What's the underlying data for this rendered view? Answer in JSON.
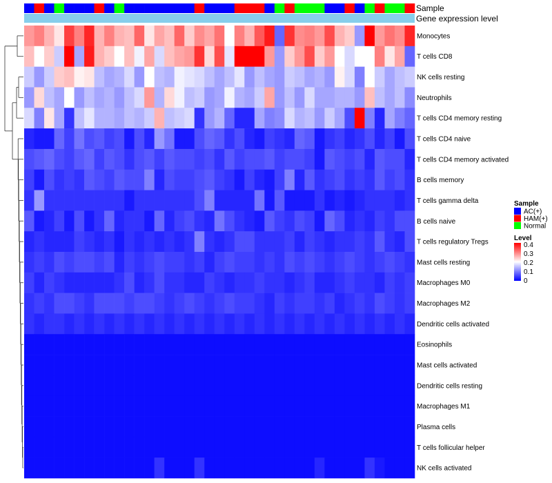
{
  "chart_data": {
    "type": "heatmap",
    "annotations": {
      "sample_label": "Sample",
      "expression_label": "Gene expression level"
    },
    "sample_groups": [
      "AC(+)",
      "HAM(+)",
      "AC(+)",
      "Normal",
      "AC(+)",
      "AC(+)",
      "AC(+)",
      "HAM(+)",
      "AC(+)",
      "Normal",
      "AC(+)",
      "AC(+)",
      "AC(+)",
      "AC(+)",
      "AC(+)",
      "AC(+)",
      "AC(+)",
      "HAM(+)",
      "AC(+)",
      "AC(+)",
      "AC(+)",
      "HAM(+)",
      "HAM(+)",
      "HAM(+)",
      "AC(+)",
      "Normal",
      "HAM(+)",
      "Normal",
      "Normal",
      "Normal",
      "AC(+)",
      "AC(+)",
      "HAM(+)",
      "AC(+)",
      "Normal",
      "HAM(+)",
      "Normal",
      "Normal",
      "HAM(+)"
    ],
    "rows": [
      {
        "label": "Monocytes",
        "values": [
          0.28,
          0.3,
          0.26,
          0.22,
          0.35,
          0.3,
          0.37,
          0.26,
          0.3,
          0.26,
          0.25,
          0.32,
          0.22,
          0.27,
          0.25,
          0.32,
          0.24,
          0.29,
          0.27,
          0.31,
          0.2,
          0.3,
          0.26,
          0.33,
          0.38,
          0.08,
          0.36,
          0.29,
          0.3,
          0.28,
          0.34,
          0.26,
          0.24,
          0.12,
          0.4,
          0.28,
          0.31,
          0.29,
          0.37
        ]
      },
      {
        "label": "T cells CD8",
        "values": [
          0.25,
          0.2,
          0.24,
          0.16,
          0.4,
          0.13,
          0.38,
          0.26,
          0.24,
          0.2,
          0.25,
          0.19,
          0.27,
          0.17,
          0.25,
          0.27,
          0.28,
          0.36,
          0.23,
          0.34,
          0.18,
          0.4,
          0.4,
          0.4,
          0.28,
          0.12,
          0.24,
          0.28,
          0.34,
          0.24,
          0.28,
          0.2,
          0.17,
          0.2,
          0.2,
          0.3,
          0.22,
          0.27,
          0.08
        ]
      },
      {
        "label": "NK cells resting",
        "values": [
          0.16,
          0.12,
          0.16,
          0.24,
          0.25,
          0.21,
          0.22,
          0.15,
          0.13,
          0.14,
          0.17,
          0.12,
          0.2,
          0.15,
          0.14,
          0.19,
          0.18,
          0.17,
          0.15,
          0.13,
          0.15,
          0.18,
          0.12,
          0.15,
          0.13,
          0.12,
          0.16,
          0.15,
          0.13,
          0.14,
          0.12,
          0.21,
          0.17,
          0.1,
          0.2,
          0.16,
          0.13,
          0.15,
          0.16
        ]
      },
      {
        "label": "Neutrophils",
        "values": [
          0.12,
          0.23,
          0.15,
          0.13,
          0.2,
          0.12,
          0.15,
          0.13,
          0.14,
          0.12,
          0.15,
          0.17,
          0.28,
          0.14,
          0.23,
          0.19,
          0.15,
          0.16,
          0.12,
          0.13,
          0.19,
          0.14,
          0.13,
          0.16,
          0.27,
          0.12,
          0.15,
          0.12,
          0.17,
          0.13,
          0.13,
          0.14,
          0.14,
          0.12,
          0.25,
          0.15,
          0.13,
          0.15,
          0.11
        ]
      },
      {
        "label": "T cells CD4 memory resting",
        "values": [
          0.17,
          0.1,
          0.22,
          0.13,
          0.04,
          0.15,
          0.18,
          0.14,
          0.14,
          0.13,
          0.15,
          0.14,
          0.16,
          0.26,
          0.15,
          0.16,
          0.17,
          0.04,
          0.12,
          0.14,
          0.08,
          0.03,
          0.03,
          0.13,
          0.1,
          0.11,
          0.17,
          0.14,
          0.15,
          0.12,
          0.16,
          0.13,
          0.06,
          0.4,
          0.1,
          0.03,
          0.13,
          0.1,
          0.08
        ]
      },
      {
        "label": "T cells CD4 naive",
        "values": [
          0.03,
          0.02,
          0.02,
          0.08,
          0.05,
          0.09,
          0.06,
          0.07,
          0.05,
          0.06,
          0.02,
          0.06,
          0.03,
          0.12,
          0.09,
          0.02,
          0.02,
          0.06,
          0.08,
          0.07,
          0.04,
          0.06,
          0.03,
          0.02,
          0.05,
          0.04,
          0.03,
          0.08,
          0.07,
          0.02,
          0.04,
          0.05,
          0.03,
          0.04,
          0.06,
          0.03,
          0.05,
          0.02,
          0.06
        ]
      },
      {
        "label": "T cells CD4 memory activated",
        "values": [
          0.06,
          0.07,
          0.08,
          0.06,
          0.05,
          0.07,
          0.08,
          0.05,
          0.07,
          0.06,
          0.04,
          0.06,
          0.07,
          0.05,
          0.07,
          0.06,
          0.06,
          0.05,
          0.06,
          0.04,
          0.07,
          0.05,
          0.06,
          0.06,
          0.07,
          0.05,
          0.06,
          0.06,
          0.05,
          0.02,
          0.07,
          0.06,
          0.05,
          0.06,
          0.03,
          0.07,
          0.06,
          0.06,
          0.03
        ]
      },
      {
        "label": "B cells memory",
        "values": [
          0.05,
          0.02,
          0.06,
          0.04,
          0.05,
          0.04,
          0.07,
          0.06,
          0.05,
          0.07,
          0.06,
          0.06,
          0.1,
          0.03,
          0.06,
          0.05,
          0.05,
          0.06,
          0.07,
          0.05,
          0.04,
          0.02,
          0.05,
          0.03,
          0.02,
          0.05,
          0.1,
          0.03,
          0.07,
          0.04,
          0.05,
          0.06,
          0.04,
          0.05,
          0.04,
          0.07,
          0.05,
          0.06,
          0.04
        ]
      },
      {
        "label": "T cells gamma delta",
        "values": [
          0.04,
          0.12,
          0.04,
          0.04,
          0.04,
          0.04,
          0.04,
          0.04,
          0.04,
          0.04,
          0.02,
          0.04,
          0.04,
          0.04,
          0.04,
          0.04,
          0.04,
          0.06,
          0.1,
          0.03,
          0.03,
          0.03,
          0.03,
          0.09,
          0.02,
          0.07,
          0.02,
          0.02,
          0.02,
          0.04,
          0.02,
          0.03,
          0.02,
          0.03,
          0.04,
          0.04,
          0.04,
          0.03,
          0.04
        ]
      },
      {
        "label": "B cells naive",
        "values": [
          0.07,
          0.02,
          0.03,
          0.05,
          0.02,
          0.06,
          0.02,
          0.04,
          0.08,
          0.03,
          0.04,
          0.04,
          0.02,
          0.08,
          0.03,
          0.05,
          0.06,
          0.04,
          0.03,
          0.09,
          0.06,
          0.04,
          0.03,
          0.02,
          0.07,
          0.05,
          0.04,
          0.06,
          0.05,
          0.02,
          0.08,
          0.06,
          0.03,
          0.04,
          0.03,
          0.05,
          0.04,
          0.06,
          0.06
        ]
      },
      {
        "label": "T cells regulatory  Tregs",
        "values": [
          0.03,
          0.04,
          0.03,
          0.03,
          0.03,
          0.05,
          0.04,
          0.03,
          0.04,
          0.02,
          0.04,
          0.03,
          0.04,
          0.03,
          0.04,
          0.03,
          0.04,
          0.1,
          0.04,
          0.03,
          0.04,
          0.06,
          0.06,
          0.04,
          0.04,
          0.04,
          0.05,
          0.03,
          0.05,
          0.04,
          0.03,
          0.04,
          0.04,
          0.05,
          0.04,
          0.07,
          0.04,
          0.03,
          0.06
        ]
      },
      {
        "label": "Mast cells resting",
        "values": [
          0.04,
          0.05,
          0.04,
          0.06,
          0.05,
          0.06,
          0.06,
          0.05,
          0.06,
          0.03,
          0.05,
          0.04,
          0.05,
          0.06,
          0.05,
          0.05,
          0.04,
          0.05,
          0.03,
          0.05,
          0.06,
          0.05,
          0.05,
          0.04,
          0.05,
          0.04,
          0.06,
          0.05,
          0.06,
          0.05,
          0.04,
          0.05,
          0.06,
          0.05,
          0.04,
          0.05,
          0.06,
          0.05,
          0.04
        ]
      },
      {
        "label": "Macrophages M0",
        "values": [
          0.05,
          0.03,
          0.05,
          0.04,
          0.03,
          0.03,
          0.03,
          0.03,
          0.03,
          0.04,
          0.06,
          0.03,
          0.04,
          0.06,
          0.04,
          0.04,
          0.03,
          0.03,
          0.05,
          0.04,
          0.03,
          0.04,
          0.04,
          0.05,
          0.04,
          0.04,
          0.03,
          0.04,
          0.05,
          0.03,
          0.03,
          0.04,
          0.05,
          0.04,
          0.04,
          0.03,
          0.05,
          0.04,
          0.05
        ]
      },
      {
        "label": "Macrophages M2",
        "values": [
          0.04,
          0.05,
          0.04,
          0.06,
          0.06,
          0.05,
          0.04,
          0.06,
          0.06,
          0.06,
          0.05,
          0.06,
          0.06,
          0.05,
          0.04,
          0.05,
          0.06,
          0.05,
          0.04,
          0.05,
          0.06,
          0.05,
          0.05,
          0.04,
          0.03,
          0.05,
          0.04,
          0.05,
          0.05,
          0.04,
          0.05,
          0.03,
          0.04,
          0.05,
          0.04,
          0.06,
          0.05,
          0.04,
          0.05
        ]
      },
      {
        "label": "Dendritic cells activated",
        "values": [
          0.04,
          0.03,
          0.04,
          0.04,
          0.03,
          0.04,
          0.03,
          0.04,
          0.03,
          0.04,
          0.03,
          0.04,
          0.03,
          0.04,
          0.03,
          0.04,
          0.03,
          0.04,
          0.03,
          0.04,
          0.03,
          0.04,
          0.03,
          0.04,
          0.03,
          0.04,
          0.03,
          0.04,
          0.03,
          0.04,
          0.03,
          0.04,
          0.03,
          0.04,
          0.03,
          0.04,
          0.03,
          0.04,
          0.03
        ]
      },
      {
        "label": "Eosinophils",
        "values": [
          0.01,
          0.01,
          0.01,
          0.01,
          0.01,
          0.01,
          0.01,
          0.01,
          0.01,
          0.01,
          0.01,
          0.01,
          0.01,
          0.01,
          0.01,
          0.01,
          0.01,
          0.01,
          0.01,
          0.01,
          0.01,
          0.01,
          0.01,
          0.01,
          0.01,
          0.01,
          0.01,
          0.01,
          0.01,
          0.01,
          0.01,
          0.01,
          0.01,
          0.01,
          0.01,
          0.01,
          0.01,
          0.01,
          0.01
        ]
      },
      {
        "label": "Mast cells activated",
        "values": [
          0.01,
          0.01,
          0.01,
          0.01,
          0.01,
          0.01,
          0.01,
          0.01,
          0.01,
          0.01,
          0.01,
          0.01,
          0.01,
          0.01,
          0.01,
          0.01,
          0.01,
          0.01,
          0.01,
          0.01,
          0.01,
          0.01,
          0.01,
          0.01,
          0.01,
          0.01,
          0.01,
          0.01,
          0.01,
          0.01,
          0.01,
          0.01,
          0.01,
          0.01,
          0.01,
          0.01,
          0.01,
          0.01,
          0.01
        ]
      },
      {
        "label": "Dendritic cells resting",
        "values": [
          0.01,
          0.01,
          0.01,
          0.01,
          0.01,
          0.01,
          0.01,
          0.01,
          0.01,
          0.01,
          0.01,
          0.01,
          0.01,
          0.01,
          0.01,
          0.01,
          0.01,
          0.01,
          0.01,
          0.01,
          0.01,
          0.01,
          0.01,
          0.01,
          0.01,
          0.01,
          0.01,
          0.01,
          0.01,
          0.01,
          0.01,
          0.01,
          0.01,
          0.01,
          0.01,
          0.01,
          0.01,
          0.01,
          0.01
        ]
      },
      {
        "label": "Macrophages M1",
        "values": [
          0.01,
          0.01,
          0.01,
          0.01,
          0.01,
          0.01,
          0.01,
          0.01,
          0.01,
          0.01,
          0.01,
          0.01,
          0.01,
          0.01,
          0.01,
          0.01,
          0.01,
          0.01,
          0.01,
          0.01,
          0.01,
          0.01,
          0.01,
          0.01,
          0.01,
          0.01,
          0.01,
          0.01,
          0.01,
          0.01,
          0.01,
          0.01,
          0.01,
          0.01,
          0.01,
          0.01,
          0.01,
          0.01,
          0.01
        ]
      },
      {
        "label": "Plasma cells",
        "values": [
          0.01,
          0.01,
          0.01,
          0.01,
          0.01,
          0.01,
          0.01,
          0.01,
          0.01,
          0.01,
          0.01,
          0.01,
          0.01,
          0.01,
          0.01,
          0.01,
          0.01,
          0.01,
          0.01,
          0.01,
          0.01,
          0.01,
          0.01,
          0.01,
          0.01,
          0.01,
          0.01,
          0.01,
          0.01,
          0.01,
          0.01,
          0.01,
          0.01,
          0.01,
          0.01,
          0.01,
          0.01,
          0.01,
          0.01
        ]
      },
      {
        "label": "T cells follicular helper",
        "values": [
          0.01,
          0.01,
          0.01,
          0.01,
          0.01,
          0.01,
          0.01,
          0.01,
          0.01,
          0.01,
          0.01,
          0.01,
          0.01,
          0.01,
          0.01,
          0.01,
          0.01,
          0.01,
          0.01,
          0.01,
          0.01,
          0.01,
          0.01,
          0.01,
          0.01,
          0.01,
          0.01,
          0.01,
          0.01,
          0.01,
          0.01,
          0.01,
          0.01,
          0.01,
          0.01,
          0.01,
          0.01,
          0.01,
          0.01
        ]
      },
      {
        "label": "NK cells activated",
        "values": [
          0.01,
          0.01,
          0.01,
          0.01,
          0.01,
          0.01,
          0.01,
          0.01,
          0.01,
          0.01,
          0.01,
          0.01,
          0.01,
          0.04,
          0.01,
          0.01,
          0.01,
          0.04,
          0.01,
          0.01,
          0.01,
          0.01,
          0.01,
          0.01,
          0.01,
          0.01,
          0.01,
          0.01,
          0.01,
          0.03,
          0.01,
          0.01,
          0.01,
          0.01,
          0.04,
          0.02,
          0.01,
          0.01,
          0.01
        ]
      }
    ],
    "legend": {
      "sample_title": "Sample",
      "groups": [
        {
          "name": "AC(+)",
          "color": "#0000ff"
        },
        {
          "name": "HAM(+)",
          "color": "#ff0000"
        },
        {
          "name": "Normal",
          "color": "#00ff00"
        }
      ],
      "level_title": "Level",
      "level_ticks": [
        "0.4",
        "0.3",
        "0.2",
        "0.1",
        "0"
      ],
      "level_range": [
        0,
        0.4
      ]
    },
    "colors": {
      "low": "#0000ff",
      "mid": "#ffffff",
      "high": "#ff0000",
      "expression_bar": "#87ceeb"
    }
  }
}
